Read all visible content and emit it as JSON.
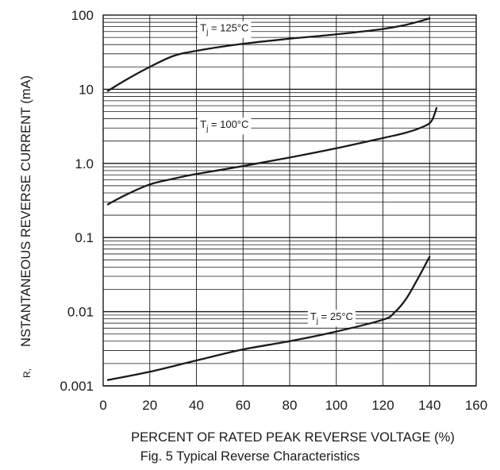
{
  "chart_data": {
    "type": "line",
    "title": "",
    "xlabel": "PERCENT OF RATED PEAK REVERSE VOLTAGE (%)",
    "ylabel_prefix": "R,",
    "ylabel": "NSTANTANEOUS REVERSE CURRENT (mA)",
    "xlim": [
      0,
      160
    ],
    "ylim": [
      0.001,
      100
    ],
    "yscale": "log",
    "grid": true,
    "x_ticks": [
      0,
      20,
      40,
      60,
      80,
      100,
      120,
      140,
      160
    ],
    "x_tick_labels": [
      "0",
      "20",
      "40",
      "60",
      "80",
      "100",
      "120",
      "140",
      "160"
    ],
    "y_ticks": [
      0.001,
      0.01,
      0.1,
      1,
      10,
      100
    ],
    "y_tick_labels": [
      "0.001",
      "0.01",
      "0.1",
      "1.0",
      "10",
      "100"
    ],
    "series": [
      {
        "label_main": "T",
        "label_sub": "j",
        "label_rest": " = 125°C",
        "label_at": [
          52,
          60
        ],
        "x": [
          2,
          10,
          20,
          30,
          40,
          60,
          80,
          100,
          120,
          130,
          140
        ],
        "y": [
          9.5,
          13.5,
          20,
          28,
          33,
          41,
          48,
          55,
          65,
          74,
          90
        ]
      },
      {
        "label_main": "T",
        "label_sub": "j",
        "label_rest": " = 100°C",
        "label_at": [
          52,
          3.0
        ],
        "x": [
          2,
          10,
          20,
          30,
          40,
          60,
          80,
          100,
          120,
          130,
          138,
          141,
          143
        ],
        "y": [
          0.28,
          0.38,
          0.52,
          0.62,
          0.72,
          0.92,
          1.2,
          1.6,
          2.2,
          2.6,
          3.2,
          3.8,
          5.6
        ]
      },
      {
        "label_main": "T",
        "label_sub": "j",
        "label_rest": " = 25°C",
        "label_at": [
          98,
          0.0077
        ],
        "x": [
          2,
          20,
          40,
          60,
          80,
          100,
          120,
          125,
          130,
          135,
          140
        ],
        "y": [
          0.0012,
          0.00155,
          0.0022,
          0.0031,
          0.004,
          0.0054,
          0.0078,
          0.0098,
          0.015,
          0.028,
          0.055
        ]
      }
    ]
  },
  "caption": "Fig. 5  Typical Reverse Characteristics"
}
